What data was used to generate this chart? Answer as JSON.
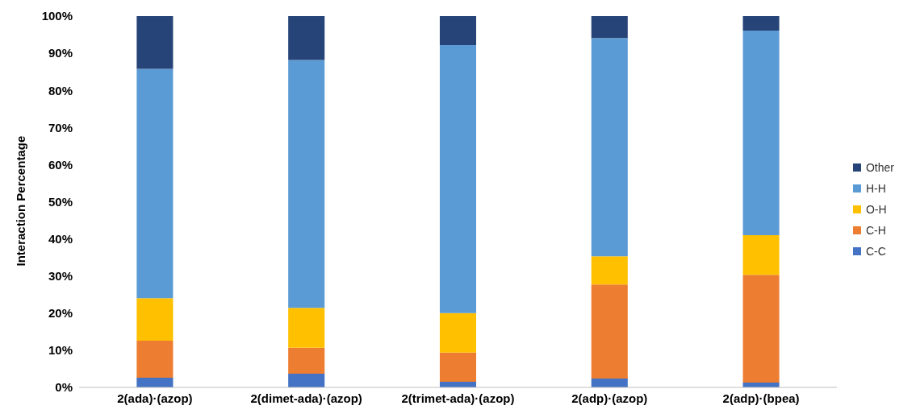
{
  "chart_data": {
    "type": "bar",
    "stacked": true,
    "ylabel": "Interaction Percentage",
    "categories": [
      "2(ada)·(azop)",
      "2(dimet-ada)·(azop)",
      "2(trimet-ada)·(azop)",
      "2(adp)·(azop)",
      "2(adp)·(bpea)"
    ],
    "series": [
      {
        "name": "C-C",
        "color": "#4472c4",
        "values": [
          2.6,
          3.7,
          1.5,
          2.4,
          1.3
        ]
      },
      {
        "name": "C-H",
        "color": "#ed7d31",
        "values": [
          10.0,
          7.0,
          7.9,
          25.3,
          29.0
        ]
      },
      {
        "name": "O-H",
        "color": "#ffc000",
        "values": [
          11.4,
          10.7,
          10.6,
          7.6,
          10.7
        ]
      },
      {
        "name": "H-H",
        "color": "#5b9bd5",
        "values": [
          61.8,
          66.8,
          72.2,
          58.8,
          55.1
        ]
      },
      {
        "name": "Other",
        "color": "#264478",
        "values": [
          14.2,
          11.8,
          7.8,
          5.9,
          3.9
        ]
      }
    ],
    "ylim": [
      0,
      100
    ],
    "yticks": [
      {
        "value": 0,
        "label": "0%"
      },
      {
        "value": 10,
        "label": "10%"
      },
      {
        "value": 20,
        "label": "20%"
      },
      {
        "value": 30,
        "label": "30%"
      },
      {
        "value": 40,
        "label": "40%"
      },
      {
        "value": 50,
        "label": "50%"
      },
      {
        "value": 60,
        "label": "60%"
      },
      {
        "value": 70,
        "label": "70%"
      },
      {
        "value": 80,
        "label": "80%"
      },
      {
        "value": 90,
        "label": "90%"
      },
      {
        "value": 100,
        "label": "100%"
      }
    ],
    "grid": false,
    "legend": "right"
  }
}
